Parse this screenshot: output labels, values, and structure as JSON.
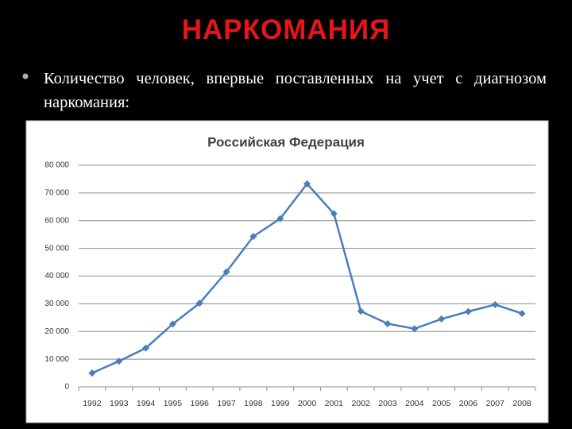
{
  "slide": {
    "title": "НАРКОМАНИЯ",
    "bullet": "Количество человек, впервые поставленных на учет с диагнозом наркомания:"
  },
  "chart_data": {
    "type": "line",
    "title": "Российская Федерация",
    "categories": [
      "1992",
      "1993",
      "1994",
      "1995",
      "1996",
      "1997",
      "1998",
      "1999",
      "2000",
      "2001",
      "2002",
      "2003",
      "2004",
      "2005",
      "2006",
      "2007",
      "2008"
    ],
    "series": [
      {
        "name": "Российская Федерация",
        "color": "#4a7ebb",
        "values": [
          5000,
          9300,
          14000,
          22700,
          30200,
          41500,
          54300,
          60700,
          73300,
          62500,
          27300,
          22800,
          21000,
          24500,
          27200,
          29700,
          26500
        ]
      }
    ],
    "ylim": [
      0,
      80000
    ],
    "yticks": [
      0,
      {
        "value": 10000,
        "label": "10 000"
      },
      {
        "value": 20000,
        "label": "20 000"
      },
      {
        "value": 30000,
        "label": "30 000"
      },
      {
        "value": 40000,
        "label": "40 000"
      },
      {
        "value": 50000,
        "label": "50 000"
      },
      {
        "value": 60000,
        "label": "60 000"
      },
      {
        "value": 70000,
        "label": "70 000"
      },
      {
        "value": 80000,
        "label": "80 000"
      }
    ],
    "grid": true
  }
}
